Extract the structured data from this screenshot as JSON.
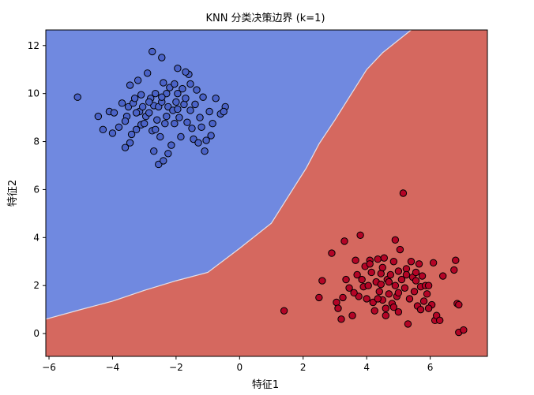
{
  "chart_data": {
    "type": "scatter",
    "title": "KNN 分类决策边界 (k=1)",
    "xlabel": "特征1",
    "ylabel": "特征2",
    "xlim": [
      -6.1,
      7.8
    ],
    "ylim": [
      -0.95,
      12.65
    ],
    "x_ticks": [
      -6,
      -4,
      -2,
      0,
      2,
      4,
      6
    ],
    "y_ticks": [
      0,
      2,
      4,
      6,
      8,
      10,
      12
    ],
    "grid": false,
    "legend": "none",
    "colors": {
      "region_class_0": "#7089e0",
      "region_class_1": "#d5685f",
      "boundary": "#e6e0e6",
      "point_class_0": "#4b63c8",
      "point_class_1": "#b40426",
      "point_edge": "#000000"
    },
    "decision_boundary": [
      [
        -6.1,
        0.6
      ],
      [
        -5.0,
        1.0
      ],
      [
        -4.0,
        1.35
      ],
      [
        -3.0,
        1.8
      ],
      [
        -2.0,
        2.2
      ],
      [
        -1.0,
        2.55
      ],
      [
        0.0,
        3.55
      ],
      [
        1.0,
        4.6
      ],
      [
        2.1,
        6.9
      ],
      [
        2.5,
        7.9
      ],
      [
        3.0,
        8.9
      ],
      [
        4.0,
        11.0
      ],
      [
        4.5,
        11.7
      ],
      [
        5.4,
        12.65
      ]
    ],
    "series": [
      {
        "class": 0,
        "points": [
          [
            -5.1,
            9.85
          ],
          [
            -4.45,
            9.05
          ],
          [
            -4.3,
            8.5
          ],
          [
            -4.1,
            9.25
          ],
          [
            -4.0,
            8.35
          ],
          [
            -3.95,
            9.2
          ],
          [
            -3.8,
            8.6
          ],
          [
            -3.7,
            9.6
          ],
          [
            -3.6,
            7.75
          ],
          [
            -3.55,
            9.05
          ],
          [
            -3.5,
            9.45
          ],
          [
            -3.45,
            7.95
          ],
          [
            -3.4,
            8.3
          ],
          [
            -3.35,
            9.6
          ],
          [
            -3.3,
            9.8
          ],
          [
            -3.25,
            8.5
          ],
          [
            -3.2,
            10.55
          ],
          [
            -3.15,
            9.25
          ],
          [
            -3.1,
            8.7
          ],
          [
            -3.05,
            9.45
          ],
          [
            -3.0,
            8.75
          ],
          [
            -2.95,
            9.05
          ],
          [
            -2.9,
            10.85
          ],
          [
            -2.85,
            9.2
          ],
          [
            -2.8,
            9.8
          ],
          [
            -2.75,
            8.45
          ],
          [
            -2.7,
            7.6
          ],
          [
            -2.7,
            9.5
          ],
          [
            -2.65,
            10.0
          ],
          [
            -2.6,
            8.9
          ],
          [
            -2.55,
            9.45
          ],
          [
            -2.5,
            8.2
          ],
          [
            -2.45,
            9.65
          ],
          [
            -2.4,
            10.45
          ],
          [
            -2.35,
            8.75
          ],
          [
            -2.3,
            9.05
          ],
          [
            -2.25,
            9.45
          ],
          [
            -2.2,
            10.25
          ],
          [
            -2.15,
            7.85
          ],
          [
            -2.1,
            9.3
          ],
          [
            -2.05,
            8.75
          ],
          [
            -2.0,
            9.65
          ],
          [
            -1.95,
            10.0
          ],
          [
            -1.9,
            9.0
          ],
          [
            -1.85,
            8.2
          ],
          [
            -1.8,
            10.2
          ],
          [
            -1.75,
            9.55
          ],
          [
            -1.7,
            9.8
          ],
          [
            -1.65,
            8.8
          ],
          [
            -1.6,
            10.8
          ],
          [
            -1.55,
            9.3
          ],
          [
            -1.5,
            8.55
          ],
          [
            -1.45,
            8.1
          ],
          [
            -1.4,
            9.55
          ],
          [
            -1.35,
            10.15
          ],
          [
            -1.3,
            7.95
          ],
          [
            -1.25,
            9.0
          ],
          [
            -1.2,
            8.6
          ],
          [
            -1.15,
            9.85
          ],
          [
            -1.05,
            8.05
          ],
          [
            -0.95,
            9.25
          ],
          [
            -0.85,
            8.75
          ],
          [
            -0.75,
            9.8
          ],
          [
            -0.6,
            9.15
          ],
          [
            -0.45,
            9.45
          ],
          [
            -2.55,
            7.05
          ],
          [
            -2.4,
            7.2
          ],
          [
            -3.1,
            9.95
          ],
          [
            -2.05,
            10.4
          ],
          [
            -1.1,
            7.6
          ],
          [
            -2.75,
            11.75
          ],
          [
            -2.45,
            11.5
          ],
          [
            -1.95,
            11.05
          ],
          [
            -1.55,
            10.4
          ],
          [
            -3.45,
            10.35
          ],
          [
            -2.25,
            7.5
          ],
          [
            -1.7,
            10.9
          ],
          [
            -0.9,
            8.25
          ],
          [
            -2.85,
            9.65
          ],
          [
            -3.6,
            8.85
          ],
          [
            -2.65,
            8.5
          ],
          [
            -2.3,
            10.0
          ],
          [
            -1.95,
            9.35
          ],
          [
            -3.25,
            9.2
          ],
          [
            -2.45,
            9.85
          ],
          [
            -0.5,
            9.25
          ]
        ]
      },
      {
        "class": 1,
        "points": [
          [
            1.4,
            0.95
          ],
          [
            2.5,
            1.5
          ],
          [
            2.6,
            2.2
          ],
          [
            2.9,
            3.35
          ],
          [
            3.05,
            1.3
          ],
          [
            3.1,
            1.05
          ],
          [
            3.2,
            0.6
          ],
          [
            3.25,
            1.5
          ],
          [
            3.3,
            3.85
          ],
          [
            3.35,
            2.25
          ],
          [
            3.45,
            1.9
          ],
          [
            3.55,
            0.75
          ],
          [
            3.65,
            3.05
          ],
          [
            3.7,
            2.45
          ],
          [
            3.75,
            1.55
          ],
          [
            3.8,
            4.1
          ],
          [
            3.85,
            2.25
          ],
          [
            3.9,
            1.95
          ],
          [
            3.95,
            2.8
          ],
          [
            4.0,
            1.45
          ],
          [
            4.05,
            2.0
          ],
          [
            4.1,
            3.05
          ],
          [
            4.15,
            2.55
          ],
          [
            4.2,
            1.3
          ],
          [
            4.25,
            0.95
          ],
          [
            4.3,
            2.15
          ],
          [
            4.35,
            3.1
          ],
          [
            4.4,
            1.75
          ],
          [
            4.45,
            2.5
          ],
          [
            4.5,
            2.75
          ],
          [
            4.5,
            1.4
          ],
          [
            4.55,
            3.15
          ],
          [
            4.6,
            1.05
          ],
          [
            4.65,
            2.25
          ],
          [
            4.7,
            1.65
          ],
          [
            4.75,
            2.45
          ],
          [
            4.8,
            1.25
          ],
          [
            4.85,
            3.0
          ],
          [
            4.9,
            3.9
          ],
          [
            4.9,
            2.0
          ],
          [
            4.95,
            1.55
          ],
          [
            5.0,
            2.6
          ],
          [
            5.0,
            0.9
          ],
          [
            5.05,
            3.5
          ],
          [
            5.1,
            2.25
          ],
          [
            5.15,
            5.85
          ],
          [
            5.2,
            1.9
          ],
          [
            5.25,
            2.7
          ],
          [
            5.3,
            0.4
          ],
          [
            5.35,
            1.45
          ],
          [
            5.4,
            3.0
          ],
          [
            5.45,
            2.35
          ],
          [
            5.5,
            1.75
          ],
          [
            5.55,
            2.55
          ],
          [
            5.6,
            1.15
          ],
          [
            5.65,
            2.9
          ],
          [
            5.7,
            1.95
          ],
          [
            5.75,
            2.4
          ],
          [
            5.8,
            1.35
          ],
          [
            5.85,
            2.0
          ],
          [
            5.9,
            1.65
          ],
          [
            5.95,
            2.0
          ],
          [
            6.05,
            1.2
          ],
          [
            6.1,
            2.95
          ],
          [
            6.15,
            0.55
          ],
          [
            6.2,
            0.75
          ],
          [
            6.3,
            0.55
          ],
          [
            6.4,
            2.4
          ],
          [
            6.75,
            2.65
          ],
          [
            6.8,
            3.05
          ],
          [
            6.85,
            1.25
          ],
          [
            6.9,
            1.2
          ],
          [
            6.9,
            0.05
          ],
          [
            7.05,
            0.15
          ],
          [
            4.6,
            0.75
          ],
          [
            5.25,
            2.45
          ],
          [
            4.35,
            1.45
          ],
          [
            5.0,
            1.7
          ],
          [
            4.45,
            2.05
          ],
          [
            5.7,
            1.0
          ],
          [
            3.6,
            1.7
          ],
          [
            4.85,
            1.1
          ],
          [
            5.55,
            2.2
          ],
          [
            4.1,
            2.9
          ],
          [
            4.7,
            2.15
          ],
          [
            5.95,
            1.05
          ]
        ]
      }
    ]
  }
}
